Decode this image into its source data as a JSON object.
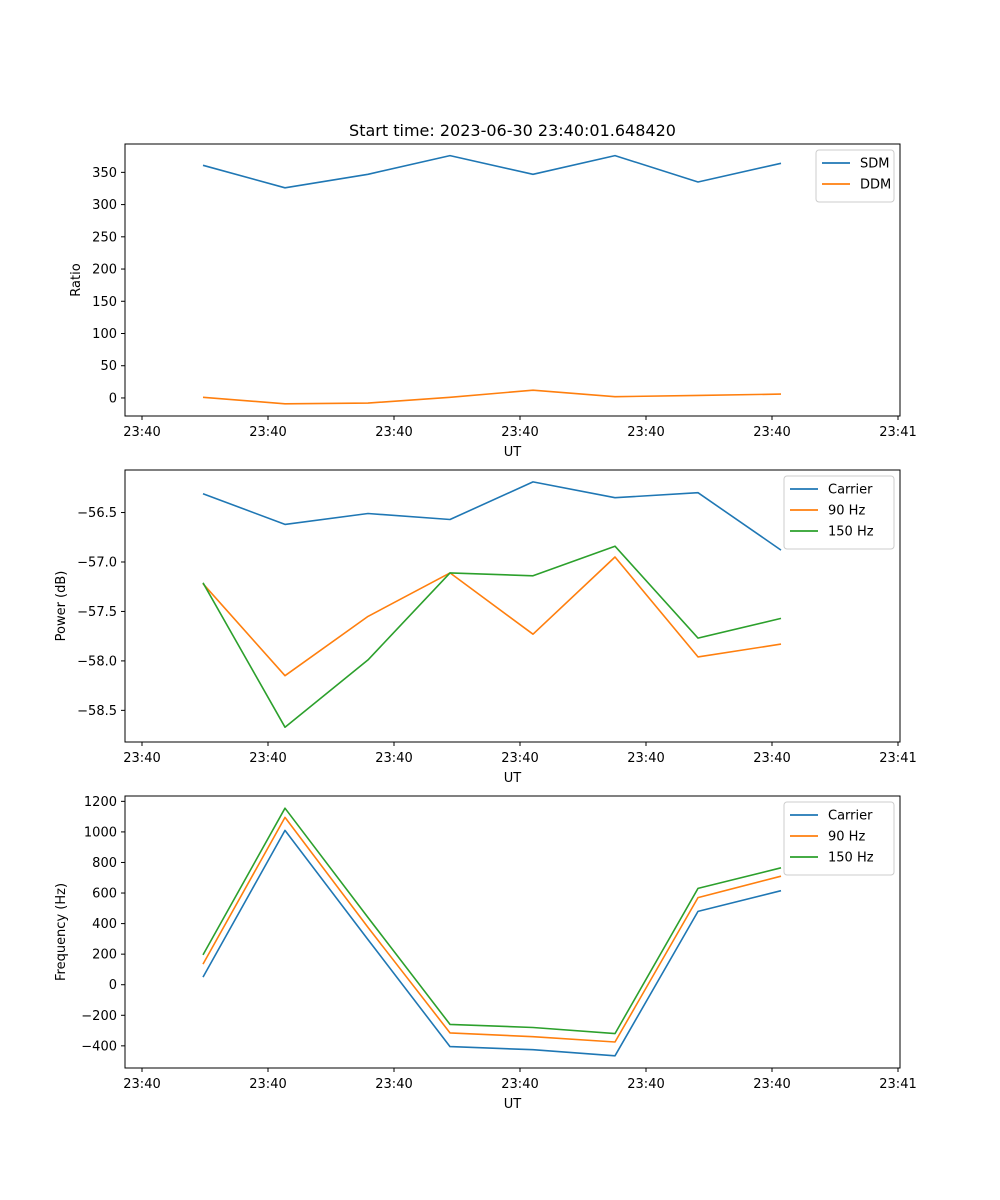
{
  "colors": {
    "blue": "#1f77b4",
    "orange": "#ff7f0e",
    "green": "#2ca02c"
  },
  "chart_data": [
    {
      "type": "line",
      "title": "Start time: 2023-06-30 23:40:01.648420",
      "xlabel": "UT",
      "ylabel": "Ratio",
      "xticks": [
        "23:40",
        "23:40",
        "23:40",
        "23:40",
        "23:40",
        "23:40",
        "23:41"
      ],
      "ylim": [
        -28,
        394
      ],
      "yticks": [
        0,
        50,
        100,
        150,
        200,
        250,
        300,
        350
      ],
      "ytick_labels": [
        "0",
        "50",
        "100",
        "150",
        "200",
        "250",
        "300",
        "350"
      ],
      "legend_position": "upper-right",
      "series": [
        {
          "name": "SDM",
          "color": "#1f77b4",
          "values": [
            361,
            326,
            347,
            376,
            347,
            376,
            335,
            364
          ]
        },
        {
          "name": "DDM",
          "color": "#ff7f0e",
          "values": [
            1,
            -9,
            -8,
            1,
            12,
            2,
            4,
            6
          ]
        }
      ]
    },
    {
      "type": "line",
      "title": "",
      "xlabel": "UT",
      "ylabel": "Power (dB)",
      "xticks": [
        "23:40",
        "23:40",
        "23:40",
        "23:40",
        "23:40",
        "23:40",
        "23:41"
      ],
      "ylim": [
        -58.82,
        -56.07
      ],
      "yticks": [
        -58.5,
        -58.0,
        -57.5,
        -57.0,
        -56.5
      ],
      "ytick_labels": [
        "−58.5",
        "−58.0",
        "−57.5",
        "−57.0",
        "−56.5"
      ],
      "legend_position": "upper-right",
      "series": [
        {
          "name": "Carrier",
          "color": "#1f77b4",
          "values": [
            -56.31,
            -56.62,
            -56.51,
            -56.57,
            -56.19,
            -56.35,
            -56.3,
            -56.88
          ]
        },
        {
          "name": "90 Hz",
          "color": "#ff7f0e",
          "values": [
            -57.22,
            -58.15,
            -57.55,
            -57.11,
            -57.73,
            -56.95,
            -57.96,
            -57.83
          ]
        },
        {
          "name": "150 Hz",
          "color": "#2ca02c",
          "values": [
            -57.21,
            -58.67,
            -57.99,
            -57.11,
            -57.14,
            -56.84,
            -57.77,
            -57.57
          ]
        }
      ]
    },
    {
      "type": "line",
      "title": "",
      "xlabel": "UT",
      "ylabel": "Frequency (Hz)",
      "xticks": [
        "23:40",
        "23:40",
        "23:40",
        "23:40",
        "23:40",
        "23:40",
        "23:41"
      ],
      "ylim": [
        -545,
        1235
      ],
      "yticks": [
        -400,
        -200,
        0,
        200,
        400,
        600,
        800,
        1000,
        1200
      ],
      "ytick_labels": [
        "−400",
        "−200",
        "0",
        "200",
        "400",
        "600",
        "800",
        "1000",
        "1200"
      ],
      "legend_position": "upper-right",
      "series": [
        {
          "name": "Carrier",
          "color": "#1f77b4",
          "values": [
            50,
            1010,
            295,
            -405,
            -425,
            -465,
            480,
            615
          ]
        },
        {
          "name": "90 Hz",
          "color": "#ff7f0e",
          "values": [
            135,
            1095,
            375,
            -315,
            -340,
            -375,
            570,
            710
          ]
        },
        {
          "name": "150 Hz",
          "color": "#2ca02c",
          "values": [
            195,
            1155,
            440,
            -260,
            -280,
            -320,
            630,
            765
          ]
        }
      ]
    }
  ]
}
